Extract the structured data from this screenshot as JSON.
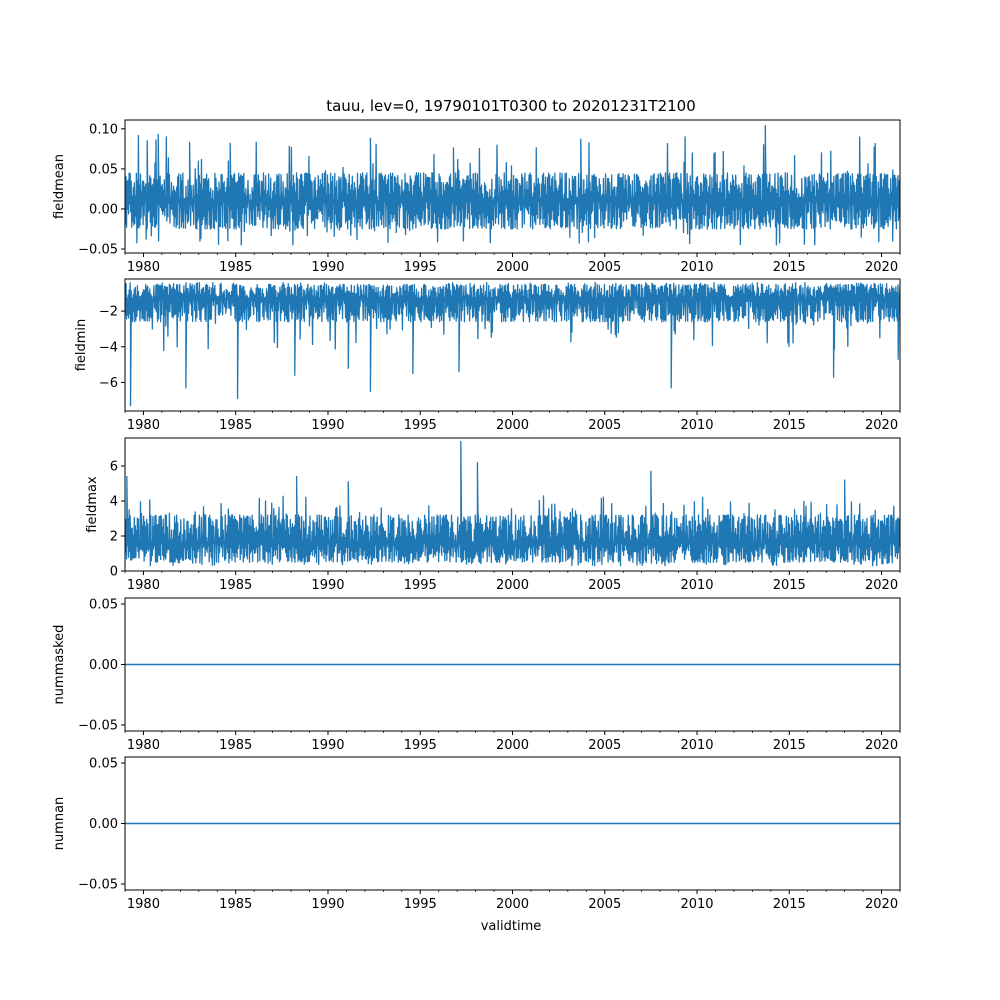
{
  "chart_data": {
    "type": "line",
    "title": "tauu, lev=0, 19790101T0300 to 20201231T2100",
    "xlabel": "validtime",
    "x_range": [
      1979.0,
      2021.0
    ],
    "x_ticks": [
      "1980",
      "1985",
      "1990",
      "1995",
      "2000",
      "2005",
      "2010",
      "2015",
      "2020"
    ],
    "line_color": "#1f77b4",
    "grid": false,
    "panels": [
      {
        "ylabel": "fieldmean",
        "ylim": [
          -0.055,
          0.111
        ],
        "yticks": [
          -0.05,
          0.0,
          0.05,
          0.1
        ],
        "ytick_labels": [
          "−0.05",
          "0.00",
          "0.05",
          "0.10"
        ],
        "band": {
          "center": 0.01,
          "low": -0.025,
          "high": 0.045,
          "spike_low": -0.045,
          "spike_high": 0.093
        },
        "extremes": [
          {
            "x": 1980.2,
            "y": 0.085
          },
          {
            "x": 1980.8,
            "y": 0.093
          },
          {
            "x": 1982.5,
            "y": 0.083
          },
          {
            "x": 1984.7,
            "y": 0.082
          },
          {
            "x": 1985.3,
            "y": -0.045
          },
          {
            "x": 1992.3,
            "y": 0.088
          },
          {
            "x": 1996.8,
            "y": 0.076
          },
          {
            "x": 2003.7,
            "y": 0.087
          },
          {
            "x": 2009.6,
            "y": -0.043
          },
          {
            "x": 2013.7,
            "y": 0.104
          },
          {
            "x": 2014.3,
            "y": -0.045
          },
          {
            "x": 2020.6,
            "y": -0.04
          }
        ]
      },
      {
        "ylabel": "fieldmin",
        "ylim": [
          -7.6,
          -0.2
        ],
        "yticks": [
          -6,
          -4,
          -2
        ],
        "ytick_labels": [
          "−6",
          "−4",
          "−2"
        ],
        "band": {
          "center": -1.3,
          "low": -2.6,
          "high": -0.5,
          "spike_low": -4.2,
          "spike_high": -0.4
        },
        "extremes": [
          {
            "x": 1979.3,
            "y": -7.3
          },
          {
            "x": 1982.3,
            "y": -6.3
          },
          {
            "x": 1985.1,
            "y": -6.9
          },
          {
            "x": 1988.2,
            "y": -5.6
          },
          {
            "x": 1991.1,
            "y": -5.2
          },
          {
            "x": 1992.3,
            "y": -6.5
          },
          {
            "x": 1994.6,
            "y": -5.5
          },
          {
            "x": 1997.1,
            "y": -5.4
          },
          {
            "x": 2008.6,
            "y": -6.3
          },
          {
            "x": 2017.4,
            "y": -5.7
          },
          {
            "x": 2020.9,
            "y": -4.7
          }
        ]
      },
      {
        "ylabel": "fieldmax",
        "ylim": [
          0,
          7.6
        ],
        "yticks": [
          0,
          2,
          4,
          6
        ],
        "ytick_labels": [
          "0",
          "2",
          "4",
          "6"
        ],
        "band": {
          "center": 1.6,
          "low": 0.5,
          "high": 3.2,
          "spike_low": 0.3,
          "spike_high": 4.3
        },
        "extremes": [
          {
            "x": 1979.1,
            "y": 5.4
          },
          {
            "x": 1988.3,
            "y": 5.4
          },
          {
            "x": 1991.1,
            "y": 5.1
          },
          {
            "x": 1997.2,
            "y": 7.4
          },
          {
            "x": 1998.1,
            "y": 6.2
          },
          {
            "x": 2007.5,
            "y": 5.7
          },
          {
            "x": 2018.0,
            "y": 5.2
          }
        ]
      },
      {
        "ylabel": "nummasked",
        "ylim": [
          -0.055,
          0.055
        ],
        "yticks": [
          -0.05,
          0.0,
          0.05
        ],
        "ytick_labels": [
          "−0.05",
          "0.00",
          "0.05"
        ],
        "constant": 0
      },
      {
        "ylabel": "numnan",
        "ylim": [
          -0.055,
          0.055
        ],
        "yticks": [
          -0.05,
          0.0,
          0.05
        ],
        "ytick_labels": [
          "−0.05",
          "0.00",
          "0.05"
        ],
        "constant": 0
      }
    ]
  }
}
